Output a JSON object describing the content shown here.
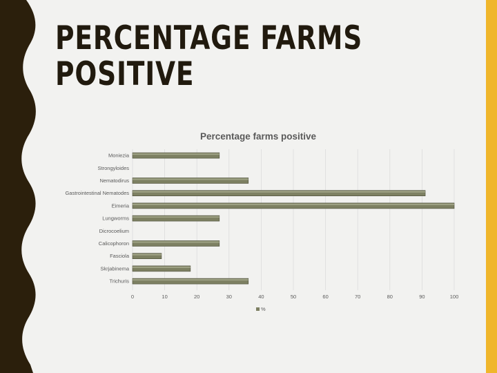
{
  "slide": {
    "title_lines": [
      "PERCENTAGE FARMS",
      "POSITIVE"
    ],
    "colors": {
      "background": "#f2f2f0",
      "left_band": "#2b1f0c",
      "right_band": "#f0b62b",
      "bar": "#7d8062"
    }
  },
  "chart_data": {
    "type": "bar",
    "orientation": "horizontal",
    "title": "Percentage farms positive",
    "categories": [
      "Moniezia",
      "Strongyloides",
      "Nematodirus",
      "Gastrointestinal Nematodes",
      "Eimeria",
      "Lungworms",
      "Dicrocoelium",
      "Calicophoron",
      "Fasciola",
      "Skrjabinema",
      "Trichuris"
    ],
    "series": [
      {
        "name": "%",
        "values": [
          27,
          0,
          36,
          91,
          100,
          27,
          0,
          27,
          9,
          18,
          36
        ]
      }
    ],
    "xlim": [
      0,
      100
    ],
    "xticks": [
      0,
      10,
      20,
      30,
      40,
      50,
      60,
      70,
      80,
      90,
      100
    ],
    "grid": "vertical",
    "legend": "bottom"
  }
}
